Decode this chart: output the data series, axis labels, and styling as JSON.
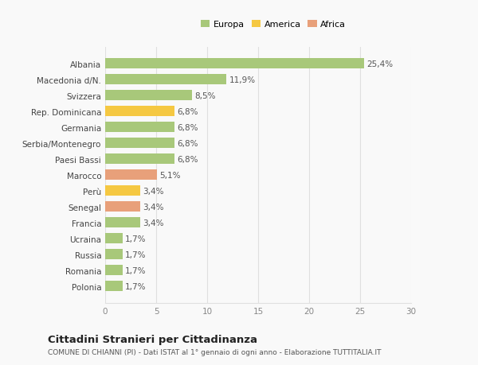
{
  "categories": [
    "Albania",
    "Macedonia d/N.",
    "Svizzera",
    "Rep. Dominicana",
    "Germania",
    "Serbia/Montenegro",
    "Paesi Bassi",
    "Marocco",
    "Perù",
    "Senegal",
    "Francia",
    "Ucraina",
    "Russia",
    "Romania",
    "Polonia"
  ],
  "values": [
    25.4,
    11.9,
    8.5,
    6.8,
    6.8,
    6.8,
    6.8,
    5.1,
    3.4,
    3.4,
    3.4,
    1.7,
    1.7,
    1.7,
    1.7
  ],
  "labels": [
    "25,4%",
    "11,9%",
    "8,5%",
    "6,8%",
    "6,8%",
    "6,8%",
    "6,8%",
    "5,1%",
    "3,4%",
    "3,4%",
    "3,4%",
    "1,7%",
    "1,7%",
    "1,7%",
    "1,7%"
  ],
  "continents": [
    "Europa",
    "Europa",
    "Europa",
    "America",
    "Europa",
    "Europa",
    "Europa",
    "Africa",
    "America",
    "Africa",
    "Europa",
    "Europa",
    "Europa",
    "Europa",
    "Europa"
  ],
  "colors": {
    "Europa": "#a8c87a",
    "America": "#f5c842",
    "Africa": "#e8a07a"
  },
  "legend": [
    {
      "label": "Europa",
      "color": "#a8c87a"
    },
    {
      "label": "America",
      "color": "#f5c842"
    },
    {
      "label": "Africa",
      "color": "#e8a07a"
    }
  ],
  "xlim": [
    0,
    30
  ],
  "xticks": [
    0,
    5,
    10,
    15,
    20,
    25,
    30
  ],
  "title": "Cittadini Stranieri per Cittadinanza",
  "subtitle": "COMUNE DI CHIANNI (PI) - Dati ISTAT al 1° gennaio di ogni anno - Elaborazione TUTTITALIA.IT",
  "background_color": "#f9f9f9",
  "grid_color": "#e0e0e0",
  "bar_height": 0.65,
  "label_fontsize": 7.5,
  "tick_fontsize": 7.5,
  "title_fontsize": 9.5,
  "subtitle_fontsize": 6.5,
  "legend_fontsize": 8.0
}
